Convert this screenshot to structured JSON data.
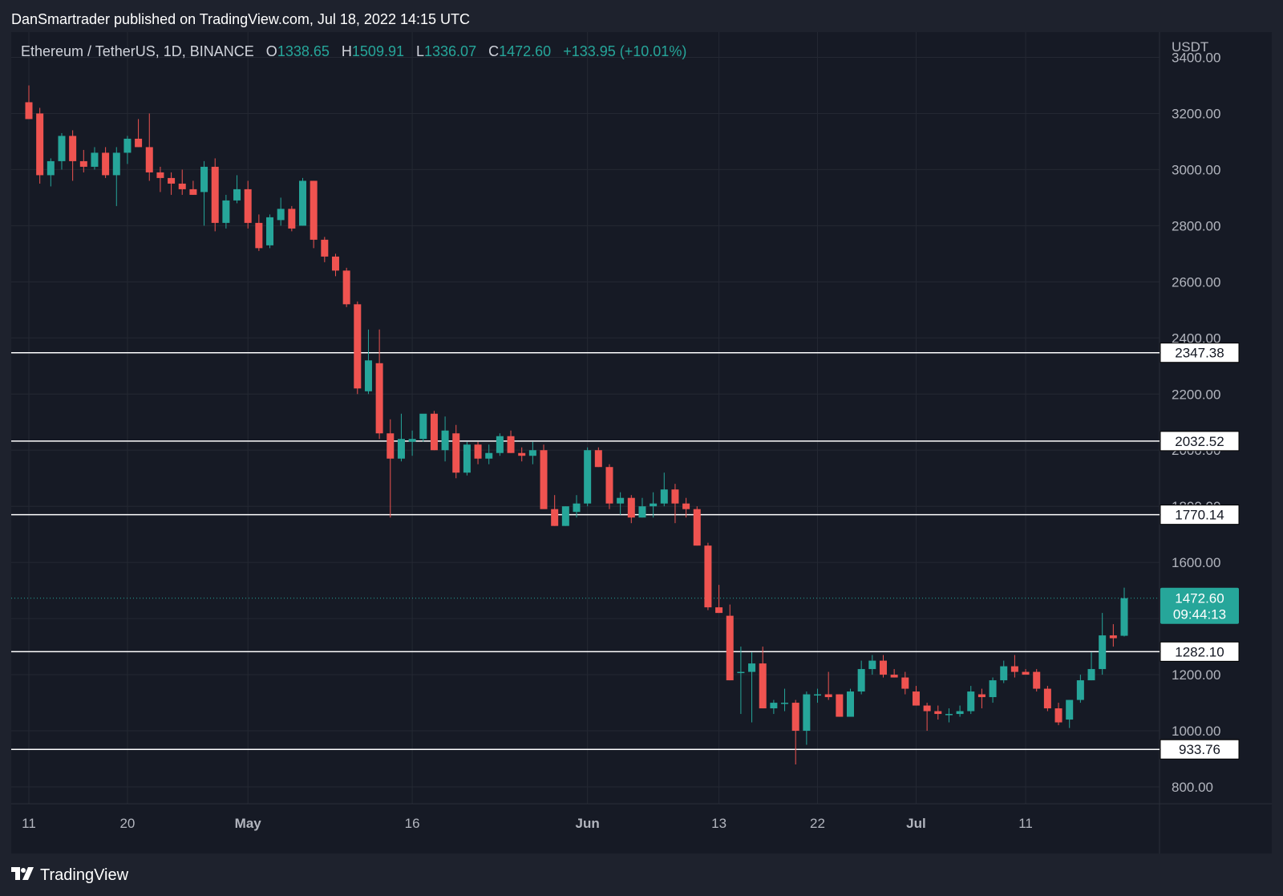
{
  "header": {
    "publisher_line": "DanSmartrader published on TradingView.com, Jul 18, 2022 14:15 UTC"
  },
  "legend": {
    "symbol": "Ethereum / TetherUS, 1D, BINANCE",
    "o_label": "O",
    "o_value": "1338.65",
    "h_label": "H",
    "h_value": "1509.91",
    "l_label": "L",
    "l_value": "1336.07",
    "c_label": "C",
    "c_value": "1472.60",
    "change": "+133.95 (+10.01%)"
  },
  "footer": {
    "brand": "TradingView"
  },
  "colors": {
    "up": "#26a69a",
    "down": "#ef5350",
    "grid": "#242833",
    "bg": "#161a25"
  },
  "chart_data": {
    "type": "candlestick",
    "currency": "USDT",
    "ylim": [
      740,
      3490
    ],
    "y_ticks": [
      800,
      1000,
      1200,
      1400,
      1600,
      1800,
      2000,
      2200,
      2400,
      2600,
      2800,
      3000,
      3200,
      3400
    ],
    "x_ticks": [
      {
        "index": 0,
        "label": "11"
      },
      {
        "index": 9,
        "label": "20"
      },
      {
        "index": 20,
        "label": "May"
      },
      {
        "index": 35,
        "label": "16"
      },
      {
        "index": 51,
        "label": "Jun"
      },
      {
        "index": 63,
        "label": "13"
      },
      {
        "index": 72,
        "label": "22"
      },
      {
        "index": 81,
        "label": "Jul"
      },
      {
        "index": 91,
        "label": "11"
      }
    ],
    "horizontal_levels": [
      2347.38,
      2032.52,
      1770.14,
      1282.1,
      933.76
    ],
    "last_price": {
      "value": 1472.6,
      "label": "1472.60",
      "countdown": "09:44:13"
    },
    "candles": [
      [
        3240,
        3300,
        3180,
        3180
      ],
      [
        3200,
        3220,
        2950,
        2980
      ],
      [
        2980,
        3040,
        2940,
        3030
      ],
      [
        3030,
        3130,
        3000,
        3120
      ],
      [
        3120,
        3140,
        2960,
        3030
      ],
      [
        3030,
        3070,
        2990,
        3010
      ],
      [
        3010,
        3080,
        3000,
        3060
      ],
      [
        3060,
        3080,
        2970,
        2980
      ],
      [
        2980,
        3080,
        2870,
        3060
      ],
      [
        3060,
        3120,
        3020,
        3110
      ],
      [
        3110,
        3180,
        3080,
        3080
      ],
      [
        3080,
        3200,
        2960,
        2990
      ],
      [
        2990,
        3010,
        2920,
        2970
      ],
      [
        2970,
        2990,
        2910,
        2950
      ],
      [
        2950,
        3000,
        2910,
        2930
      ],
      [
        2930,
        2960,
        2910,
        2910
      ],
      [
        2920,
        3030,
        2800,
        3010
      ],
      [
        3010,
        3040,
        2780,
        2810
      ],
      [
        2810,
        2910,
        2790,
        2890
      ],
      [
        2890,
        2980,
        2880,
        2930
      ],
      [
        2930,
        2960,
        2790,
        2810
      ],
      [
        2810,
        2840,
        2710,
        2720
      ],
      [
        2730,
        2840,
        2720,
        2830
      ],
      [
        2820,
        2900,
        2800,
        2860
      ],
      [
        2860,
        2870,
        2780,
        2790
      ],
      [
        2800,
        2970,
        2800,
        2960
      ],
      [
        2960,
        2960,
        2720,
        2750
      ],
      [
        2750,
        2760,
        2670,
        2690
      ],
      [
        2690,
        2700,
        2620,
        2640
      ],
      [
        2640,
        2650,
        2510,
        2520
      ],
      [
        2520,
        2530,
        2200,
        2220
      ],
      [
        2210,
        2430,
        2200,
        2320
      ],
      [
        2310,
        2430,
        2040,
        2060
      ],
      [
        2060,
        2110,
        1760,
        1970
      ],
      [
        1970,
        2130,
        1960,
        2040
      ],
      [
        2030,
        2070,
        1980,
        2040
      ],
      [
        2040,
        2120,
        2030,
        2130
      ],
      [
        2130,
        2140,
        2000,
        2000
      ],
      [
        2000,
        2120,
        1960,
        2070
      ],
      [
        2060,
        2090,
        1900,
        1920
      ],
      [
        1920,
        2030,
        1910,
        2020
      ],
      [
        2020,
        2030,
        1950,
        1970
      ],
      [
        1970,
        2020,
        1950,
        1990
      ],
      [
        1990,
        2060,
        1980,
        2050
      ],
      [
        2050,
        2070,
        1990,
        1990
      ],
      [
        1990,
        2010,
        1960,
        1980
      ],
      [
        1980,
        2030,
        1950,
        2000
      ],
      [
        2000,
        2020,
        1800,
        1790
      ],
      [
        1790,
        1840,
        1730,
        1730
      ],
      [
        1730,
        1800,
        1730,
        1800
      ],
      [
        1780,
        1840,
        1760,
        1810
      ],
      [
        1810,
        2010,
        1800,
        2000
      ],
      [
        2000,
        2010,
        1940,
        1940
      ],
      [
        1940,
        1950,
        1790,
        1810
      ],
      [
        1810,
        1850,
        1770,
        1830
      ],
      [
        1830,
        1840,
        1740,
        1760
      ],
      [
        1760,
        1830,
        1760,
        1800
      ],
      [
        1800,
        1850,
        1760,
        1810
      ],
      [
        1810,
        1920,
        1800,
        1860
      ],
      [
        1860,
        1880,
        1740,
        1810
      ],
      [
        1810,
        1830,
        1760,
        1790
      ],
      [
        1790,
        1800,
        1660,
        1660
      ],
      [
        1660,
        1670,
        1430,
        1440
      ],
      [
        1440,
        1520,
        1420,
        1420
      ],
      [
        1410,
        1450,
        1180,
        1180
      ],
      [
        1210,
        1300,
        1060,
        1210
      ],
      [
        1210,
        1280,
        1030,
        1240
      ],
      [
        1240,
        1300,
        1080,
        1080
      ],
      [
        1080,
        1110,
        1060,
        1100
      ],
      [
        1100,
        1150,
        1070,
        1100
      ],
      [
        1100,
        1110,
        880,
        1000
      ],
      [
        1000,
        1140,
        950,
        1130
      ],
      [
        1130,
        1150,
        1100,
        1130
      ],
      [
        1130,
        1210,
        1110,
        1120
      ],
      [
        1130,
        1130,
        1050,
        1050
      ],
      [
        1050,
        1150,
        1050,
        1140
      ],
      [
        1140,
        1250,
        1130,
        1220
      ],
      [
        1220,
        1270,
        1200,
        1250
      ],
      [
        1250,
        1270,
        1190,
        1200
      ],
      [
        1200,
        1220,
        1190,
        1190
      ],
      [
        1190,
        1210,
        1130,
        1150
      ],
      [
        1140,
        1160,
        1090,
        1090
      ],
      [
        1090,
        1100,
        1000,
        1070
      ],
      [
        1070,
        1090,
        1040,
        1060
      ],
      [
        1060,
        1080,
        1030,
        1060
      ],
      [
        1060,
        1090,
        1050,
        1070
      ],
      [
        1070,
        1160,
        1060,
        1140
      ],
      [
        1130,
        1150,
        1080,
        1120
      ],
      [
        1120,
        1190,
        1100,
        1180
      ],
      [
        1180,
        1250,
        1170,
        1230
      ],
      [
        1230,
        1270,
        1190,
        1210
      ],
      [
        1210,
        1220,
        1200,
        1200
      ],
      [
        1210,
        1220,
        1140,
        1150
      ],
      [
        1150,
        1160,
        1070,
        1080
      ],
      [
        1080,
        1100,
        1020,
        1030
      ],
      [
        1040,
        1110,
        1010,
        1110
      ],
      [
        1110,
        1200,
        1100,
        1180
      ],
      [
        1180,
        1280,
        1180,
        1220
      ],
      [
        1220,
        1420,
        1200,
        1340
      ],
      [
        1340,
        1380,
        1300,
        1330
      ],
      [
        1338.65,
        1509.91,
        1336.07,
        1472.6
      ]
    ]
  }
}
